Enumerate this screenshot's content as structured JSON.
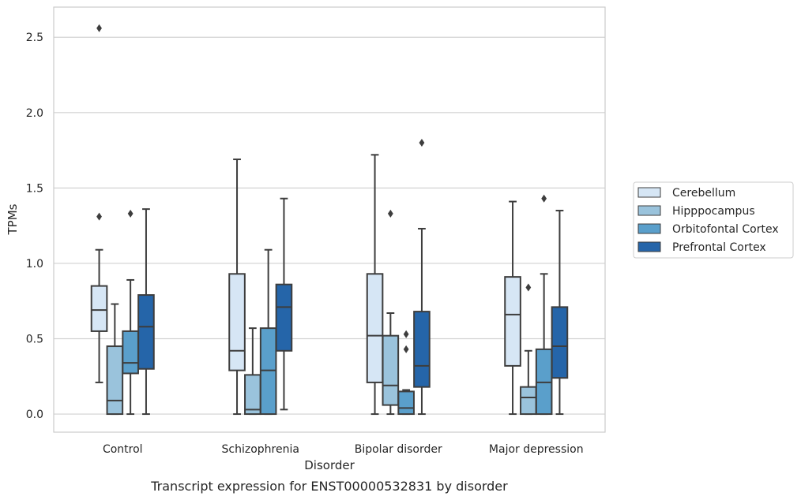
{
  "caption": "Transcript expression for ENST00000532831 by disorder",
  "chart_data": {
    "type": "box",
    "title": "",
    "xlabel": "Disorder",
    "ylabel": "TPMs",
    "ylim": [
      -0.12,
      2.7
    ],
    "yticks": [
      0.0,
      0.5,
      1.0,
      1.5,
      2.0,
      2.5
    ],
    "ytick_labels": [
      "0.0",
      "0.5",
      "1.0",
      "1.5",
      "2.0",
      "2.5"
    ],
    "grid": "horizontal",
    "legend_position": "right",
    "categories": [
      "Control",
      "Schizophrenia",
      "Bipolar disorder",
      "Major depression"
    ],
    "series": [
      {
        "name": "Cerebellum",
        "color": "#d6e6f5",
        "boxes": [
          {
            "whislo": 0.21,
            "q1": 0.55,
            "med": 0.69,
            "q3": 0.85,
            "whishi": 1.09,
            "fliers": [
              1.31,
              2.56
            ]
          },
          {
            "whislo": 0.0,
            "q1": 0.29,
            "med": 0.42,
            "q3": 0.93,
            "whishi": 1.69,
            "fliers": []
          },
          {
            "whislo": 0.0,
            "q1": 0.21,
            "med": 0.52,
            "q3": 0.93,
            "whishi": 1.72,
            "fliers": []
          },
          {
            "whislo": 0.0,
            "q1": 0.32,
            "med": 0.66,
            "q3": 0.91,
            "whishi": 1.41,
            "fliers": []
          }
        ]
      },
      {
        "name": "Hipppocampus",
        "color": "#9ac3dc",
        "boxes": [
          {
            "whislo": 0.0,
            "q1": 0.0,
            "med": 0.09,
            "q3": 0.45,
            "whishi": 0.73,
            "fliers": []
          },
          {
            "whislo": 0.0,
            "q1": 0.0,
            "med": 0.03,
            "q3": 0.26,
            "whishi": 0.57,
            "fliers": []
          },
          {
            "whislo": 0.0,
            "q1": 0.06,
            "med": 0.19,
            "q3": 0.52,
            "whishi": 0.67,
            "fliers": [
              1.33
            ]
          },
          {
            "whislo": 0.0,
            "q1": 0.0,
            "med": 0.11,
            "q3": 0.18,
            "whishi": 0.42,
            "fliers": [
              0.84
            ]
          }
        ]
      },
      {
        "name": "Orbitofontal Cortex",
        "color": "#5a9fcb",
        "boxes": [
          {
            "whislo": 0.0,
            "q1": 0.27,
            "med": 0.34,
            "q3": 0.55,
            "whishi": 0.89,
            "fliers": [
              1.33
            ]
          },
          {
            "whislo": 0.0,
            "q1": 0.0,
            "med": 0.29,
            "q3": 0.57,
            "whishi": 1.09,
            "fliers": []
          },
          {
            "whislo": 0.0,
            "q1": 0.0,
            "med": 0.04,
            "q3": 0.15,
            "whishi": 0.16,
            "fliers": [
              0.43,
              0.53
            ]
          },
          {
            "whislo": 0.0,
            "q1": 0.0,
            "med": 0.21,
            "q3": 0.43,
            "whishi": 0.93,
            "fliers": [
              1.43
            ]
          }
        ]
      },
      {
        "name": "Prefrontal Cortex",
        "color": "#2565a9",
        "boxes": [
          {
            "whislo": 0.0,
            "q1": 0.3,
            "med": 0.58,
            "q3": 0.79,
            "whishi": 1.36,
            "fliers": []
          },
          {
            "whislo": 0.03,
            "q1": 0.42,
            "med": 0.71,
            "q3": 0.86,
            "whishi": 1.43,
            "fliers": []
          },
          {
            "whislo": 0.0,
            "q1": 0.18,
            "med": 0.32,
            "q3": 0.68,
            "whishi": 1.23,
            "fliers": [
              1.8
            ]
          },
          {
            "whislo": 0.0,
            "q1": 0.24,
            "med": 0.45,
            "q3": 0.71,
            "whishi": 1.35,
            "fliers": []
          }
        ]
      }
    ]
  }
}
